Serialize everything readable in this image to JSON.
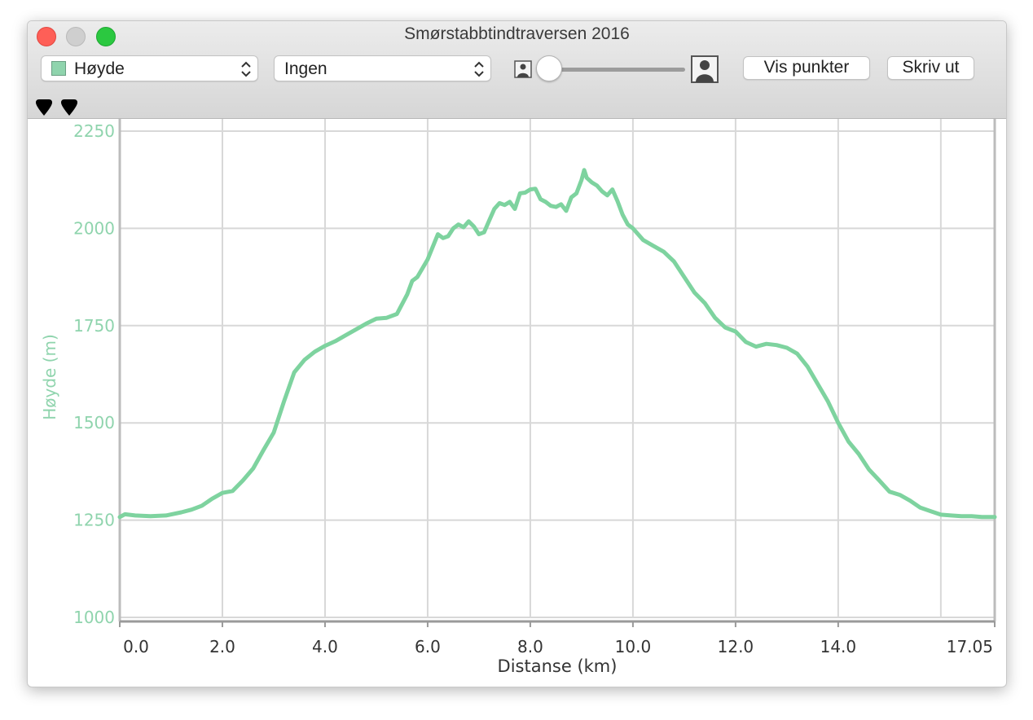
{
  "window": {
    "title": "Smørstabbtindtraversen 2016"
  },
  "toolbar": {
    "primary_select": {
      "value": "Høyde",
      "swatch_color": "#8fd4ad"
    },
    "secondary_select": {
      "value": "Ingen"
    },
    "zoom_slider": {
      "value": 0.0
    },
    "show_points_label": "Vis punkter",
    "print_label": "Skriv ut"
  },
  "markers": [
    "marker-1",
    "marker-2"
  ],
  "colors": {
    "series": "#7ed39f",
    "grid": "#d8d8d8",
    "axis": "#bcbcbc",
    "y_text": "#8fd4ad"
  },
  "chart_data": {
    "type": "line",
    "xlabel": "Distanse (km)",
    "ylabel": "Høyde (m)",
    "xlim": [
      0,
      17.05
    ],
    "ylim": [
      1000,
      2250
    ],
    "xticks": [
      "0.0",
      "2.0",
      "4.0",
      "6.0",
      "8.0",
      "10.0",
      "12.0",
      "14.0",
      "17.05"
    ],
    "xtick_values": [
      0,
      2,
      4,
      6,
      8,
      10,
      12,
      14,
      17.05
    ],
    "yticks": [
      "1000",
      "1250",
      "1500",
      "1750",
      "2000",
      "2250"
    ],
    "ytick_values": [
      1000,
      1250,
      1500,
      1750,
      2000,
      2250
    ],
    "vertical_gridlines": [
      2,
      4,
      6,
      8,
      10,
      12,
      14,
      16
    ],
    "grid": true,
    "series": [
      {
        "x": [
          0,
          0.1,
          0.3,
          0.6,
          0.9,
          1.2,
          1.4,
          1.6,
          1.8,
          2.0,
          2.2,
          2.4,
          2.6,
          2.8,
          3.0,
          3.2,
          3.4,
          3.6,
          3.8,
          4.0,
          4.2,
          4.4,
          4.6,
          4.8,
          5.0,
          5.2,
          5.4,
          5.6,
          5.7,
          5.8,
          6.0,
          6.2,
          6.3,
          6.4,
          6.5,
          6.6,
          6.7,
          6.8,
          6.9,
          7.0,
          7.1,
          7.2,
          7.3,
          7.4,
          7.5,
          7.6,
          7.7,
          7.8,
          7.9,
          8.0,
          8.1,
          8.2,
          8.3,
          8.4,
          8.5,
          8.6,
          8.7,
          8.8,
          8.9,
          9.0,
          9.05,
          9.1,
          9.2,
          9.3,
          9.4,
          9.5,
          9.6,
          9.7,
          9.8,
          9.9,
          10.0,
          10.2,
          10.4,
          10.6,
          10.8,
          11.0,
          11.2,
          11.4,
          11.6,
          11.8,
          12.0,
          12.2,
          12.4,
          12.6,
          12.8,
          13.0,
          13.2,
          13.4,
          13.6,
          13.8,
          14.0,
          14.2,
          14.4,
          14.6,
          14.8,
          15.0,
          15.2,
          15.4,
          15.6,
          15.8,
          16.0,
          16.2,
          16.4,
          16.6,
          16.8,
          17.0,
          17.05
        ],
        "values": [
          1258,
          1265,
          1262,
          1260,
          1262,
          1270,
          1277,
          1287,
          1305,
          1320,
          1325,
          1352,
          1383,
          1430,
          1475,
          1555,
          1630,
          1662,
          1683,
          1698,
          1710,
          1725,
          1740,
          1755,
          1768,
          1770,
          1780,
          1830,
          1865,
          1875,
          1920,
          1985,
          1975,
          1980,
          2000,
          2010,
          2003,
          2018,
          2005,
          1985,
          1990,
          2020,
          2050,
          2065,
          2060,
          2068,
          2050,
          2090,
          2092,
          2100,
          2102,
          2075,
          2068,
          2058,
          2055,
          2062,
          2045,
          2080,
          2090,
          2125,
          2150,
          2130,
          2118,
          2110,
          2095,
          2085,
          2100,
          2070,
          2035,
          2010,
          2000,
          1970,
          1955,
          1940,
          1915,
          1875,
          1835,
          1808,
          1770,
          1745,
          1735,
          1708,
          1696,
          1703,
          1700,
          1693,
          1678,
          1645,
          1600,
          1555,
          1500,
          1452,
          1420,
          1380,
          1352,
          1323,
          1315,
          1300,
          1282,
          1273,
          1264,
          1262,
          1260,
          1260,
          1258,
          1258,
          1258
        ]
      }
    ]
  }
}
